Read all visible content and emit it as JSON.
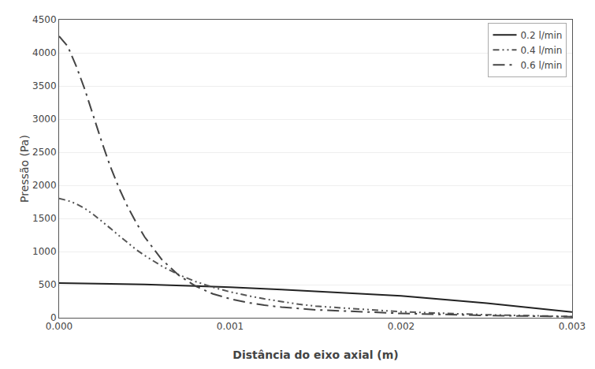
{
  "chart_data": {
    "type": "line",
    "xlabel": "Distância do eixo axial (m)",
    "ylabel": "Pressão (Pa)",
    "xlim": [
      0.0,
      0.003
    ],
    "ylim": [
      0,
      4500
    ],
    "xticks": [
      {
        "value": 0,
        "label": "0.000"
      },
      0.001,
      0.002,
      0.003
    ],
    "yticks": [
      0,
      500,
      1000,
      1500,
      2000,
      2500,
      3000,
      3500,
      4000,
      4500
    ],
    "grid": "y",
    "legend": "upper right",
    "series": [
      {
        "name": "0.2 l/min",
        "color": "#222222",
        "line_style": "solid",
        "x": [
          0.0,
          5e-05,
          0.0001,
          0.0002,
          0.0003,
          0.0005,
          0.0007,
          0.001,
          0.0013,
          0.0015,
          0.0018,
          0.002,
          0.0025,
          0.003
        ],
        "values": [
          525,
          524,
          522,
          518,
          513,
          503,
          490,
          462,
          425,
          400,
          360,
          330,
          220,
          85
        ]
      },
      {
        "name": "0.4 l/min",
        "color": "#555555",
        "line_style": "dashdotdot",
        "x": [
          0.0,
          5e-05,
          0.0001,
          0.00015,
          0.0002,
          0.00025,
          0.0003,
          0.00035,
          0.0004,
          0.00045,
          0.0005,
          0.0006,
          0.0007,
          0.0008,
          0.0009,
          0.001,
          0.0011,
          0.0012,
          0.0013,
          0.0014,
          0.0015,
          0.002,
          0.0025,
          0.003
        ],
        "values": [
          1800,
          1770,
          1720,
          1650,
          1560,
          1460,
          1350,
          1240,
          1130,
          1030,
          940,
          780,
          650,
          545,
          460,
          390,
          335,
          285,
          245,
          205,
          175,
          90,
          45,
          18
        ]
      },
      {
        "name": "0.6 l/min",
        "color": "#444444",
        "line_style": "dashdot",
        "x": [
          0.0,
          5e-05,
          0.0001,
          0.00015,
          0.0002,
          0.00025,
          0.0003,
          0.00035,
          0.0004,
          0.00045,
          0.0005,
          0.0006,
          0.0007,
          0.0008,
          0.0009,
          0.001,
          0.0011,
          0.0012,
          0.0013,
          0.0014,
          0.0015,
          0.002,
          0.0025,
          0.003
        ],
        "values": [
          4250,
          4100,
          3800,
          3450,
          3050,
          2650,
          2280,
          1960,
          1680,
          1440,
          1220,
          880,
          640,
          475,
          360,
          285,
          230,
          190,
          160,
          138,
          120,
          65,
          35,
          15
        ]
      }
    ]
  }
}
